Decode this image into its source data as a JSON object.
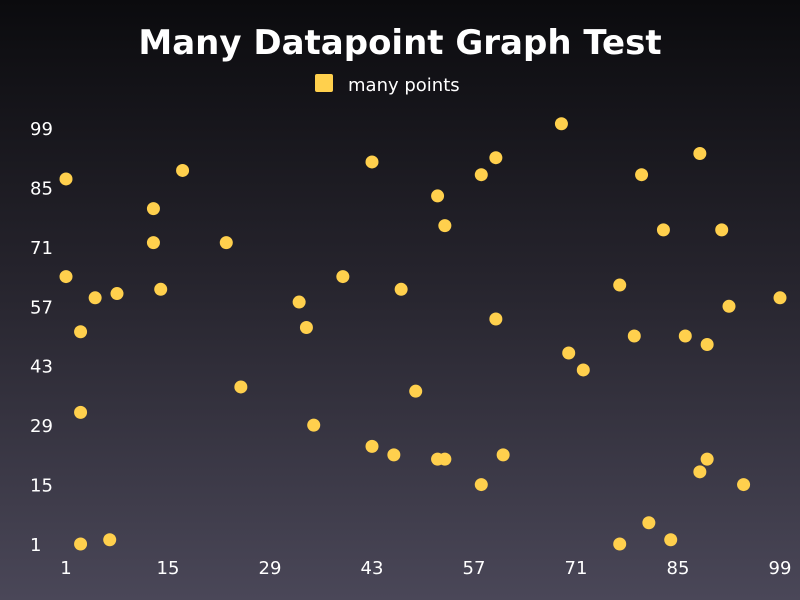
{
  "chart_data": {
    "type": "scatter",
    "title": "Many Datapoint Graph Test",
    "legend": {
      "placement": "top-center",
      "entries": [
        {
          "label": "many points",
          "color": "#ffd04d"
        }
      ]
    },
    "xlim": [
      1,
      99
    ],
    "ylim": [
      1,
      99
    ],
    "x_ticks": [
      "1",
      "15",
      "29",
      "43",
      "57",
      "71",
      "85",
      "99"
    ],
    "y_ticks": [
      "1",
      "15",
      "29",
      "43",
      "57",
      "71",
      "85",
      "99"
    ],
    "grid": false,
    "series": [
      {
        "name": "many points",
        "color": "#ffd04d",
        "points": [
          {
            "x": 1,
            "y": 64
          },
          {
            "x": 1,
            "y": 87
          },
          {
            "x": 3,
            "y": 51
          },
          {
            "x": 3,
            "y": 32
          },
          {
            "x": 3,
            "y": 1
          },
          {
            "x": 5,
            "y": 59
          },
          {
            "x": 7,
            "y": 2
          },
          {
            "x": 8,
            "y": 60
          },
          {
            "x": 13,
            "y": 80
          },
          {
            "x": 13,
            "y": 72
          },
          {
            "x": 14,
            "y": 61
          },
          {
            "x": 17,
            "y": 89
          },
          {
            "x": 23,
            "y": 72
          },
          {
            "x": 25,
            "y": 38
          },
          {
            "x": 33,
            "y": 58
          },
          {
            "x": 34,
            "y": 52
          },
          {
            "x": 35,
            "y": 29
          },
          {
            "x": 39,
            "y": 64
          },
          {
            "x": 43,
            "y": 91
          },
          {
            "x": 43,
            "y": 24
          },
          {
            "x": 46,
            "y": 22
          },
          {
            "x": 47,
            "y": 61
          },
          {
            "x": 49,
            "y": 37
          },
          {
            "x": 52,
            "y": 83
          },
          {
            "x": 52,
            "y": 21
          },
          {
            "x": 53,
            "y": 76
          },
          {
            "x": 53,
            "y": 21
          },
          {
            "x": 58,
            "y": 88
          },
          {
            "x": 58,
            "y": 15
          },
          {
            "x": 60,
            "y": 92
          },
          {
            "x": 60,
            "y": 54
          },
          {
            "x": 61,
            "y": 22
          },
          {
            "x": 69,
            "y": 100
          },
          {
            "x": 70,
            "y": 46
          },
          {
            "x": 72,
            "y": 42
          },
          {
            "x": 77,
            "y": 62
          },
          {
            "x": 77,
            "y": 1
          },
          {
            "x": 79,
            "y": 50
          },
          {
            "x": 80,
            "y": 88
          },
          {
            "x": 81,
            "y": 6
          },
          {
            "x": 83,
            "y": 75
          },
          {
            "x": 84,
            "y": 2
          },
          {
            "x": 86,
            "y": 50
          },
          {
            "x": 88,
            "y": 93
          },
          {
            "x": 88,
            "y": 18
          },
          {
            "x": 89,
            "y": 48
          },
          {
            "x": 89,
            "y": 21
          },
          {
            "x": 91,
            "y": 75
          },
          {
            "x": 92,
            "y": 57
          },
          {
            "x": 94,
            "y": 15
          },
          {
            "x": 99,
            "y": 59
          }
        ]
      }
    ]
  }
}
